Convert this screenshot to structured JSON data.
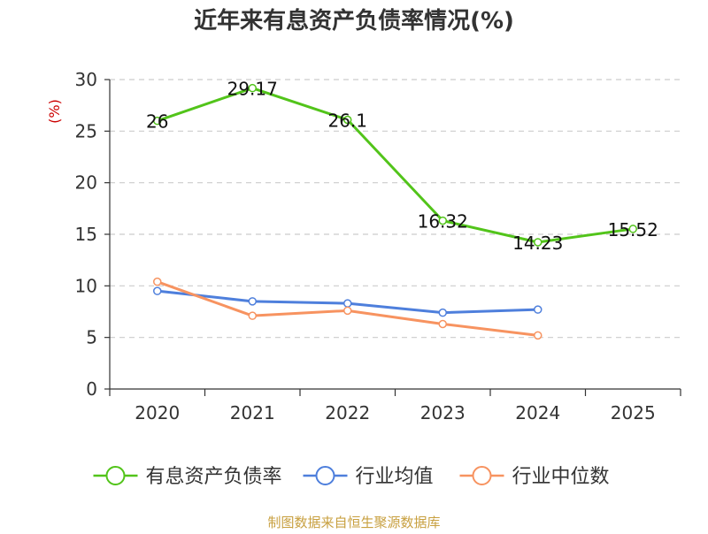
{
  "chart_data": {
    "type": "line",
    "title": "近年来有息资产负债率情况(%)",
    "ylabel": "(%)",
    "xlabel": "",
    "categories": [
      "2020",
      "2021",
      "2022",
      "2023",
      "2024",
      "2025"
    ],
    "ylim": [
      0,
      30
    ],
    "yticks": [
      0,
      5,
      10,
      15,
      20,
      25,
      30
    ],
    "grid": true,
    "legend_position": "bottom",
    "series": [
      {
        "name": "有息资产负债率",
        "color": "#52c41a",
        "values": [
          26,
          29.17,
          26.1,
          16.32,
          14.23,
          15.52
        ],
        "labels": [
          "26",
          "29.17",
          "26.1",
          "16.32",
          "14.23",
          "15.52"
        ]
      },
      {
        "name": "行业均值",
        "color": "#4e7fdc",
        "values": [
          9.5,
          8.5,
          8.3,
          7.4,
          7.7,
          null
        ]
      },
      {
        "name": "行业中位数",
        "color": "#f79360",
        "values": [
          10.4,
          7.1,
          7.6,
          6.3,
          5.2,
          null
        ]
      }
    ],
    "source": "制图数据来自恒生聚源数据库"
  }
}
